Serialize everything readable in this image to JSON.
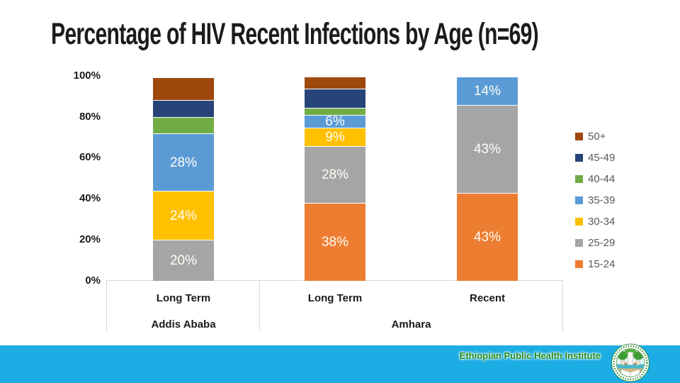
{
  "title": "Percentage of HIV Recent Infections by Age (n=69)",
  "y_axis": {
    "labels": [
      "100%",
      "80%",
      "60%",
      "40%",
      "20%",
      "0%"
    ]
  },
  "x_axis": {
    "categories": [
      "Long Term",
      "Long Term",
      "Recent"
    ],
    "groups": [
      "Addis Ababa",
      "Amhara"
    ]
  },
  "colors": {
    "50+": "#9E480E",
    "45-49": "#264478",
    "40-44": "#70AD47",
    "35-39": "#5B9BD5",
    "30-34": "#FFC000",
    "25-29": "#A5A5A5",
    "15-24": "#ED7D31"
  },
  "legend": [
    {
      "label": "50+",
      "color": "#9E480E"
    },
    {
      "label": "45-49",
      "color": "#264478"
    },
    {
      "label": "40-44",
      "color": "#70AD47"
    },
    {
      "label": "35-39",
      "color": "#5B9BD5"
    },
    {
      "label": "30-34",
      "color": "#FFC000"
    },
    {
      "label": "25-29",
      "color": "#A5A5A5"
    },
    {
      "label": "15-24",
      "color": "#ED7D31"
    }
  ],
  "bars": [
    {
      "category": "Long Term",
      "group": "Addis Ababa",
      "segments": [
        {
          "age": "50+",
          "pct": 11,
          "label": ""
        },
        {
          "age": "45-49",
          "pct": 8.5,
          "label": ""
        },
        {
          "age": "40-44",
          "pct": 8,
          "label": ""
        },
        {
          "age": "35-39",
          "pct": 28,
          "label": "28%"
        },
        {
          "age": "30-34",
          "pct": 24,
          "label": "24%"
        },
        {
          "age": "25-29",
          "pct": 20,
          "label": "20%"
        }
      ]
    },
    {
      "category": "Long Term",
      "group": "Amhara",
      "segments": [
        {
          "age": "50+",
          "pct": 6,
          "label": ""
        },
        {
          "age": "45-49",
          "pct": 9.5,
          "label": ""
        },
        {
          "age": "40-44",
          "pct": 3.5,
          "label": ""
        },
        {
          "age": "35-39",
          "pct": 6,
          "label": "6%"
        },
        {
          "age": "30-34",
          "pct": 9,
          "label": "9%"
        },
        {
          "age": "25-29",
          "pct": 28,
          "label": "28%"
        },
        {
          "age": "15-24",
          "pct": 38,
          "label": "38%"
        }
      ]
    },
    {
      "category": "Recent",
      "group": "Amhara",
      "segments": [
        {
          "age": "35-39",
          "pct": 14,
          "label": "14%"
        },
        {
          "age": "25-29",
          "pct": 43,
          "label": "43%"
        },
        {
          "age": "15-24",
          "pct": 43,
          "label": "43%"
        }
      ]
    }
  ],
  "footer": {
    "org": "Ethiopian Public Health Institute",
    "band_color": "#1BADE4",
    "text_color": "#1F8B1F"
  },
  "chart_data": {
    "type": "bar",
    "stacked": true,
    "title": "Percentage of HIV Recent Infections by Age (n=69)",
    "categories": [
      "Addis Ababa - Long Term",
      "Amhara - Long Term",
      "Amhara - Recent"
    ],
    "series": [
      {
        "name": "15-24",
        "color": "#ED7D31",
        "values": [
          0,
          38,
          43
        ]
      },
      {
        "name": "25-29",
        "color": "#A5A5A5",
        "values": [
          20,
          28,
          43
        ]
      },
      {
        "name": "30-34",
        "color": "#FFC000",
        "values": [
          24,
          9,
          0
        ]
      },
      {
        "name": "35-39",
        "color": "#5B9BD5",
        "values": [
          28,
          6,
          14
        ]
      },
      {
        "name": "40-44",
        "color": "#70AD47",
        "values": [
          8,
          3.5,
          0
        ]
      },
      {
        "name": "45-49",
        "color": "#264478",
        "values": [
          8.5,
          9.5,
          0
        ]
      },
      {
        "name": "50+",
        "color": "#9E480E",
        "values": [
          11,
          6,
          0
        ]
      }
    ],
    "xlabel": "",
    "ylabel": "",
    "ylim": [
      0,
      100
    ],
    "ytick_labels": [
      "0%",
      "20%",
      "40%",
      "60%",
      "80%",
      "100%"
    ],
    "grid": false,
    "legend_position": "right",
    "data_labels": "white, shown inside larger segments"
  }
}
